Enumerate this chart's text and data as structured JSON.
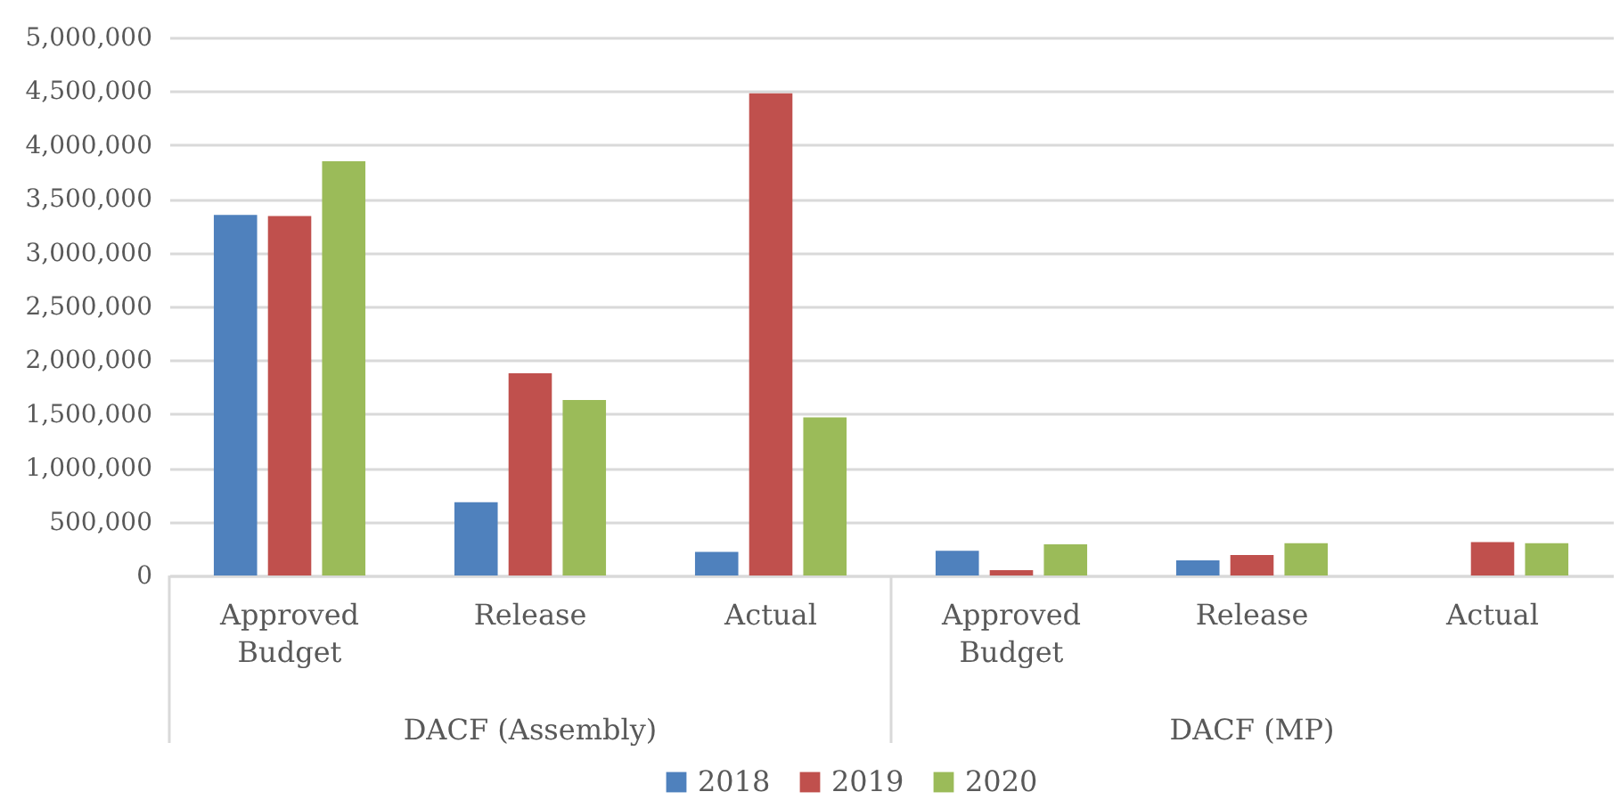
{
  "chart_data": {
    "type": "bar",
    "categories": [
      "Approved Budget",
      "Release",
      "Actual",
      "Approved Budget",
      "Release",
      "Actual"
    ],
    "series": [
      {
        "name": "2018",
        "color": "#4f81bd",
        "values": [
          3350000,
          680000,
          220000,
          230000,
          140000,
          null
        ]
      },
      {
        "name": "2019",
        "color": "#c0504d",
        "values": [
          3340000,
          1880000,
          4480000,
          50000,
          190000,
          310000
        ]
      },
      {
        "name": "2020",
        "color": "#9bbb59",
        "values": [
          3850000,
          1630000,
          1470000,
          290000,
          300000,
          300000
        ]
      }
    ],
    "ylim": [
      0,
      5000000
    ],
    "yticks": [
      0,
      {
        "value": 500000,
        "label": "500,000"
      },
      {
        "value": 1000000,
        "label": "1,000,000"
      },
      {
        "value": 1500000,
        "label": "1,500,000"
      },
      {
        "value": 2000000,
        "label": "2,000,000"
      },
      {
        "value": 2500000,
        "label": "2,500,000"
      },
      {
        "value": 3000000,
        "label": "3,000,000"
      },
      {
        "value": 3500000,
        "label": "3,500,000"
      },
      {
        "value": 4000000,
        "label": "4,000,000"
      },
      {
        "value": 4500000,
        "label": "4,500,000"
      },
      {
        "value": 5000000,
        "label": "5,000,000"
      }
    ],
    "grid": "y",
    "legend": "bottom",
    "annotations": [
      "DACF (Assembly)",
      "DACF (MP)"
    ]
  }
}
